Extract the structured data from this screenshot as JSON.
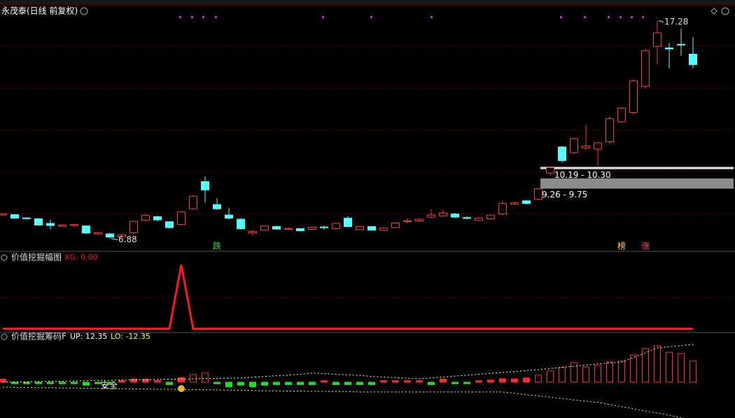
{
  "chart_data": [
    {
      "type": "candlestick",
      "title": "永茂泰(日线 前复权)",
      "open": [
        8.0,
        8.02,
        7.86,
        7.82,
        7.6,
        7.46,
        7.5,
        7.48,
        7.1,
        7.1,
        6.96,
        7.15,
        7.75,
        7.92,
        7.68,
        7.55,
        8.3,
        9.6,
        8.5,
        8.0,
        7.8,
        7.15,
        7.28,
        7.45,
        7.32,
        7.35,
        7.32,
        7.43,
        7.35,
        7.85,
        7.3,
        7.45,
        7.28,
        7.4,
        7.7,
        7.72,
        7.9,
        7.96,
        8.05,
        7.88,
        7.75,
        7.82,
        8.05,
        8.52,
        8.68,
        8.75,
        10.0,
        11.25,
        10.98,
        11.2,
        11.15,
        11.5,
        12.45,
        12.9,
        14.15,
        16.05,
        15.98,
        16.15,
        15.68
      ],
      "high": [
        8.1,
        8.05,
        7.9,
        7.85,
        7.78,
        7.55,
        7.58,
        7.5,
        7.2,
        7.15,
        7.1,
        7.72,
        8.05,
        7.98,
        7.7,
        8.2,
        8.95,
        9.85,
        8.8,
        8.35,
        7.85,
        7.3,
        7.5,
        7.5,
        7.42,
        7.38,
        7.45,
        7.5,
        7.65,
        7.95,
        7.48,
        7.48,
        7.42,
        7.65,
        7.85,
        7.82,
        8.28,
        8.25,
        8.1,
        7.95,
        7.88,
        8.02,
        8.7,
        8.65,
        8.72,
        9.3,
        10.3,
        11.3,
        11.7,
        12.3,
        11.5,
        12.7,
        13.2,
        14.5,
        15.95,
        17.28,
        16.22,
        16.9,
        16.5
      ],
      "low": [
        7.98,
        7.82,
        7.8,
        7.5,
        7.3,
        7.42,
        7.47,
        7.1,
        7.05,
        6.88,
        6.92,
        7.1,
        7.7,
        7.7,
        7.35,
        7.5,
        8.25,
        8.6,
        8.25,
        7.8,
        7.3,
        7.0,
        7.25,
        7.3,
        7.3,
        7.2,
        7.3,
        7.3,
        7.32,
        7.42,
        7.28,
        7.25,
        7.25,
        7.38,
        7.6,
        7.68,
        7.85,
        7.92,
        7.85,
        7.8,
        7.72,
        7.8,
        8.0,
        8.48,
        8.5,
        8.7,
        9.9,
        10.5,
        10.9,
        11.1,
        10.35,
        11.4,
        12.4,
        12.8,
        14.05,
        15.2,
        15.0,
        15.6,
        15.0
      ],
      "close": [
        8.05,
        7.85,
        7.84,
        7.52,
        7.5,
        7.52,
        7.55,
        7.14,
        7.16,
        6.95,
        7.05,
        7.7,
        7.98,
        7.77,
        7.4,
        8.15,
        8.9,
        9.2,
        8.3,
        7.85,
        7.35,
        7.22,
        7.48,
        7.33,
        7.36,
        7.25,
        7.42,
        7.4,
        7.6,
        7.45,
        7.45,
        7.28,
        7.38,
        7.62,
        7.72,
        7.8,
        8.0,
        8.1,
        7.9,
        7.84,
        7.85,
        8.0,
        8.55,
        8.58,
        8.55,
        9.26,
        10.26,
        10.6,
        11.65,
        11.3,
        11.45,
        12.6,
        13.1,
        14.4,
        15.85,
        16.7,
        15.93,
        16.12,
        15.18
      ],
      "up_color": "#ff3c3c",
      "down_color": "#54ffff",
      "ylim": [
        6.3,
        18.0
      ],
      "zones": [
        {
          "low": 10.19,
          "high": 10.3,
          "label": "10.19 - 10.30",
          "color": "#dddddd"
        },
        {
          "low": 9.26,
          "high": 9.75,
          "label": "9.26 - 9.75",
          "color": "#8c8c8c"
        }
      ],
      "markers": [
        {
          "index": 18,
          "label": "跌",
          "color": "#33dd33"
        },
        {
          "index": 52,
          "label": "榜",
          "color": "#ffcc66"
        },
        {
          "index": 54,
          "label": "涨",
          "color": "#ff5555"
        }
      ]
    },
    {
      "type": "line",
      "title": "价值挖掘幅图",
      "ylim": [
        -0.05,
        1.2
      ],
      "series": [
        {
          "name": "XG: 0.00",
          "color": "#ff1a1a",
          "values": [
            0,
            0,
            0,
            0,
            0,
            0,
            0,
            0,
            0,
            0,
            0,
            0,
            0,
            0,
            0,
            1,
            0,
            0,
            0,
            0,
            0,
            0,
            0,
            0,
            0,
            0,
            0,
            0,
            0,
            0,
            0,
            0,
            0,
            0,
            0,
            0,
            0,
            0,
            0,
            0,
            0,
            0,
            0,
            0,
            0,
            0,
            0,
            0,
            0,
            0,
            0,
            0,
            0,
            0,
            0,
            0,
            0,
            0,
            0
          ]
        }
      ]
    },
    {
      "type": "bar",
      "title": "价值挖掘筹码F",
      "ylim": [
        -11.7,
        16
      ],
      "values": [
        1,
        -0.5,
        -0.5,
        -0.5,
        -0.5,
        -0.5,
        -0.5,
        -1,
        -0.5,
        -0.5,
        0.5,
        1,
        1,
        0.5,
        -0.8,
        1.5,
        2.5,
        3,
        -0.5,
        -1.5,
        -1,
        -1.5,
        -1,
        -0.8,
        -0.8,
        -0.8,
        -0.8,
        0.5,
        -0.8,
        -0.8,
        -0.8,
        -0.8,
        0.5,
        0.5,
        0.5,
        0.5,
        -0.8,
        1,
        -0.5,
        -0.5,
        0.5,
        0.7,
        1.1,
        1.1,
        1.4,
        2.3,
        3.7,
        4.8,
        6.4,
        5,
        5.5,
        6.6,
        6.9,
        8.9,
        11,
        11.9,
        9.8,
        9.4,
        6.9
      ],
      "up_color": "#ff2a2a",
      "down_color": "#22dd22",
      "series": [
        {
          "name": "UP: 12.35",
          "color": "#ffffff",
          "values": [
            0,
            0.1,
            0.1,
            0.2,
            0.3,
            0.3,
            0.4,
            0.5,
            0.6,
            0.6,
            0.7,
            0.8,
            0.8,
            0.9,
            1.0,
            1.0,
            1.1,
            1.2,
            1.2,
            1.3,
            1.4,
            1.6,
            1.9,
            2.1,
            2.3,
            2.6,
            3.0,
            2.8,
            2.6,
            2.4,
            2.2,
            1.9,
            1.7,
            1.5,
            1.3,
            1.1,
            1.4,
            1.7,
            2.0,
            2.3,
            2.6,
            2.9,
            3.2,
            3.5,
            3.8,
            4.1,
            4.5,
            4.9,
            5.2,
            5.6,
            6.0,
            6.3,
            6.6,
            8.1,
            9.6,
            11.2,
            11.6,
            12.0,
            12.35
          ]
        },
        {
          "name": "LO: -12.35",
          "color": "#ffff33",
          "values": [
            -1.6,
            -1.7,
            -1.7,
            -1.8,
            -1.8,
            -1.9,
            -1.9,
            -2.0,
            -2.0,
            -2.1,
            -2.1,
            -2.2,
            -2.2,
            -2.3,
            -2.3,
            -2.4,
            -2.4,
            -2.5,
            -2.5,
            -2.6,
            -2.7,
            -2.7,
            -2.8,
            -2.8,
            -2.9,
            -2.9,
            -3.0,
            -3.0,
            -3.1,
            -3.1,
            -3.2,
            -3.2,
            -3.2,
            -3.2,
            -3.2,
            -3.2,
            -3.2,
            -3.2,
            -3.2,
            -3.2,
            -3.2,
            -3.2,
            -3.2,
            -3.6,
            -4.1,
            -4.5,
            -4.9,
            -5.3,
            -5.8,
            -6.2,
            -6.6,
            -7.3,
            -8.0,
            -8.7,
            -9.4,
            -10.1,
            -10.8,
            -11.6,
            -12.35
          ]
        }
      ],
      "note": "安全"
    }
  ]
}
